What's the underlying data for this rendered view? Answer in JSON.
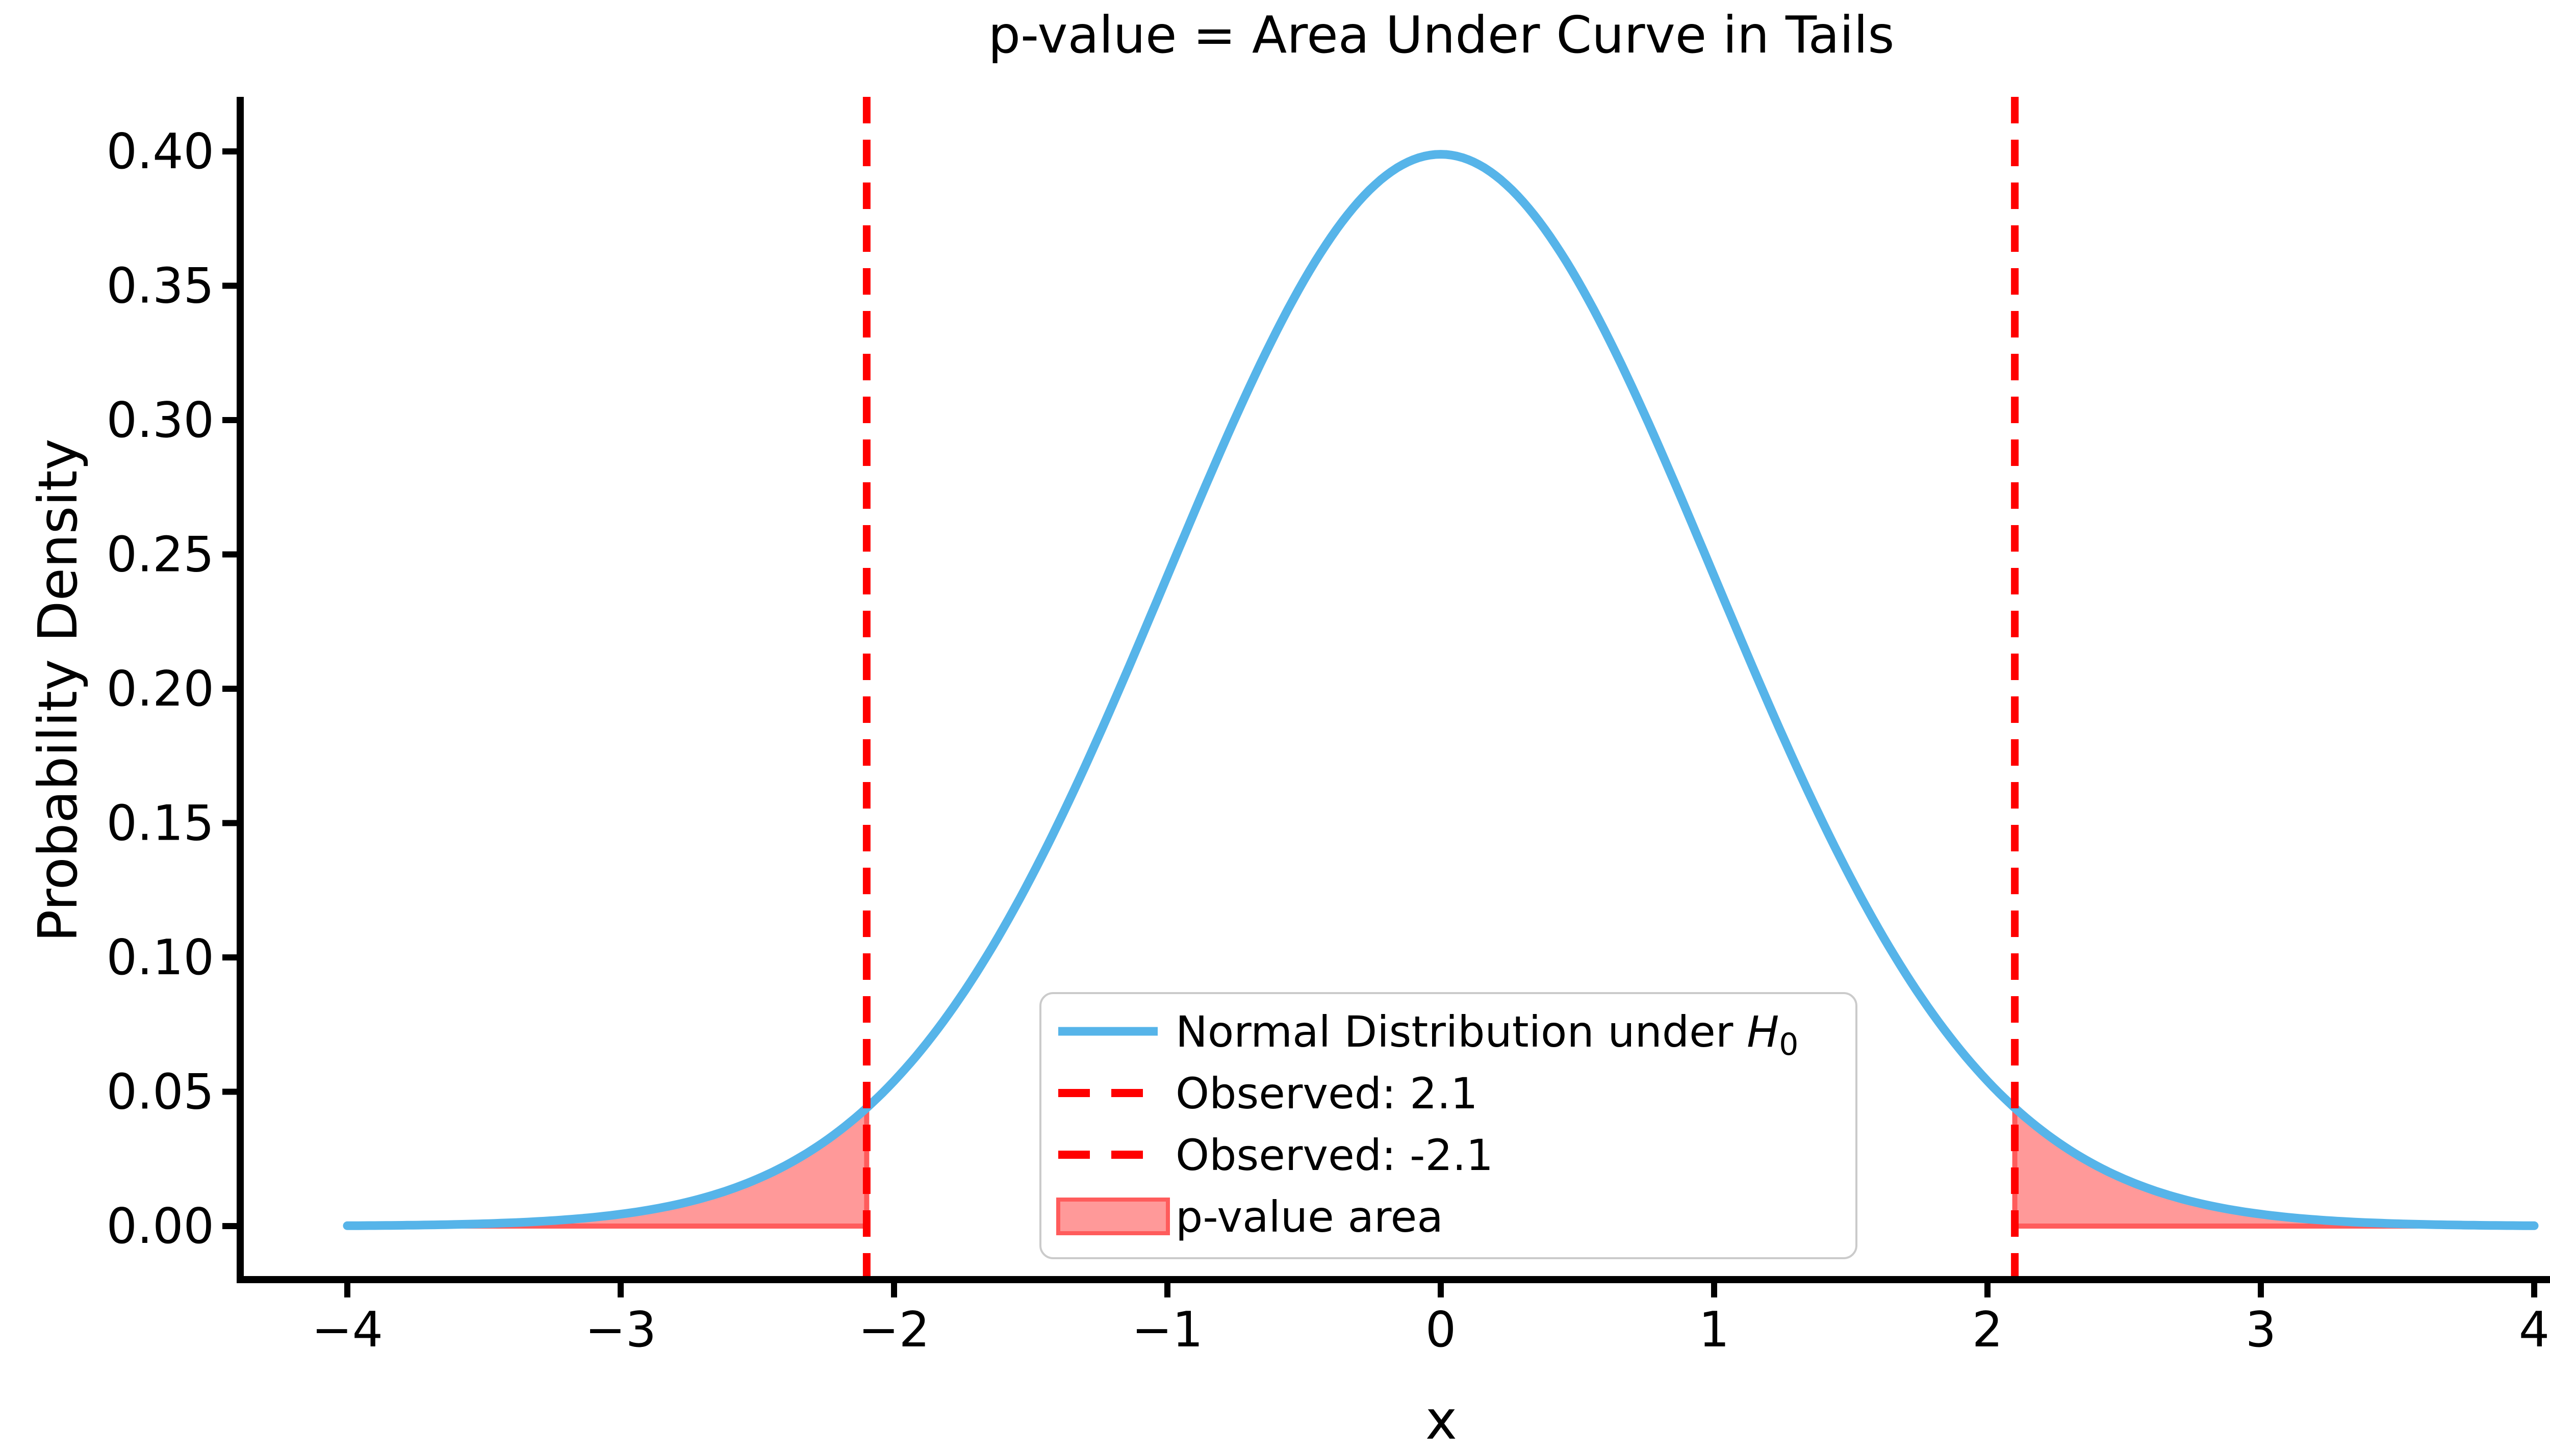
{
  "title": "p-value = Area Under Curve in Tails",
  "axes": {
    "xlabel": "x",
    "ylabel": "Probability Density",
    "x_tick_values": [
      -4,
      -3,
      -2,
      -1,
      0,
      1,
      2,
      3,
      4
    ],
    "x_tick_labels": [
      "−4",
      "−3",
      "−2",
      "−1",
      "0",
      "1",
      "2",
      "3",
      "4"
    ],
    "y_tick_values": [
      0.0,
      0.05,
      0.1,
      0.15,
      0.2,
      0.25,
      0.3,
      0.35,
      0.4
    ],
    "y_tick_labels": [
      "0.00",
      "0.05",
      "0.10",
      "0.15",
      "0.20",
      "0.25",
      "0.30",
      "0.35",
      "0.40"
    ],
    "xlim": [
      -4.4,
      4.4
    ],
    "ylim": [
      -0.02,
      0.42
    ],
    "grid": false
  },
  "chart_data": {
    "type": "line",
    "title": "p-value = Area Under Curve in Tails",
    "xlabel": "x",
    "ylabel": "Probability Density",
    "xlim": [
      -4.4,
      4.4
    ],
    "ylim": [
      -0.02,
      0.42
    ],
    "legend_position": "lower center",
    "distribution": {
      "name": "standard normal pdf",
      "mean": 0,
      "std": 1,
      "peak": 0.3989
    },
    "observed_values": [
      2.1,
      -2.1
    ],
    "shaded_regions": [
      [
        -4,
        -2.1
      ],
      [
        2.1,
        4
      ]
    ],
    "series": [
      {
        "name": "Normal Distribution under H0",
        "kind": "line",
        "color": "#56B4E9",
        "x": [
          -4,
          -3.75,
          -3.5,
          -3.25,
          -3,
          -2.75,
          -2.5,
          -2.25,
          -2,
          -1.75,
          -1.5,
          -1.25,
          -1,
          -0.75,
          -0.5,
          -0.25,
          0,
          0.25,
          0.5,
          0.75,
          1,
          1.25,
          1.5,
          1.75,
          2,
          2.25,
          2.5,
          2.75,
          3,
          3.25,
          3.5,
          3.75,
          4
        ],
        "y": [
          0.0001,
          0.0004,
          0.0009,
          0.002,
          0.0044,
          0.0091,
          0.0175,
          0.0317,
          0.054,
          0.0863,
          0.1295,
          0.1826,
          0.242,
          0.3011,
          0.3521,
          0.3867,
          0.3989,
          0.3867,
          0.3521,
          0.3011,
          0.242,
          0.1826,
          0.1295,
          0.0863,
          0.054,
          0.0317,
          0.0175,
          0.0091,
          0.0044,
          0.002,
          0.0009,
          0.0004,
          0.0001
        ]
      },
      {
        "name": "Observed: 2.1",
        "kind": "vline",
        "x": 2.1,
        "color": "#FF0000",
        "style": "dashed"
      },
      {
        "name": "Observed: -2.1",
        "kind": "vline",
        "x": -2.1,
        "color": "#FF0000",
        "style": "dashed"
      },
      {
        "name": "p-value area",
        "kind": "fill",
        "regions": [
          [
            -4,
            -2.1
          ],
          [
            2.1,
            4
          ]
        ],
        "color": "#FF0000",
        "alpha": 0.4
      }
    ]
  },
  "legend": {
    "entries": [
      {
        "type": "line",
        "color": "#56B4E9",
        "label": "Normal Distribution under ",
        "math": "H",
        "sub": "0"
      },
      {
        "type": "dash",
        "color": "#FF0000",
        "label": "Observed: 2.1"
      },
      {
        "type": "dash",
        "color": "#FF0000",
        "label": "Observed: -2.1"
      },
      {
        "type": "patch",
        "fill": "#FF9999",
        "edge": "#FF5C5C",
        "label": "p-value area"
      }
    ]
  },
  "colors": {
    "curve_blue": "#56B4E9",
    "observed_red": "#FF0000",
    "fill_pink": "#FF9999",
    "fill_edge": "#FF5C5C",
    "axis_black": "#000000",
    "legend_border": "#CBCBCB",
    "background": "#FFFFFF"
  }
}
